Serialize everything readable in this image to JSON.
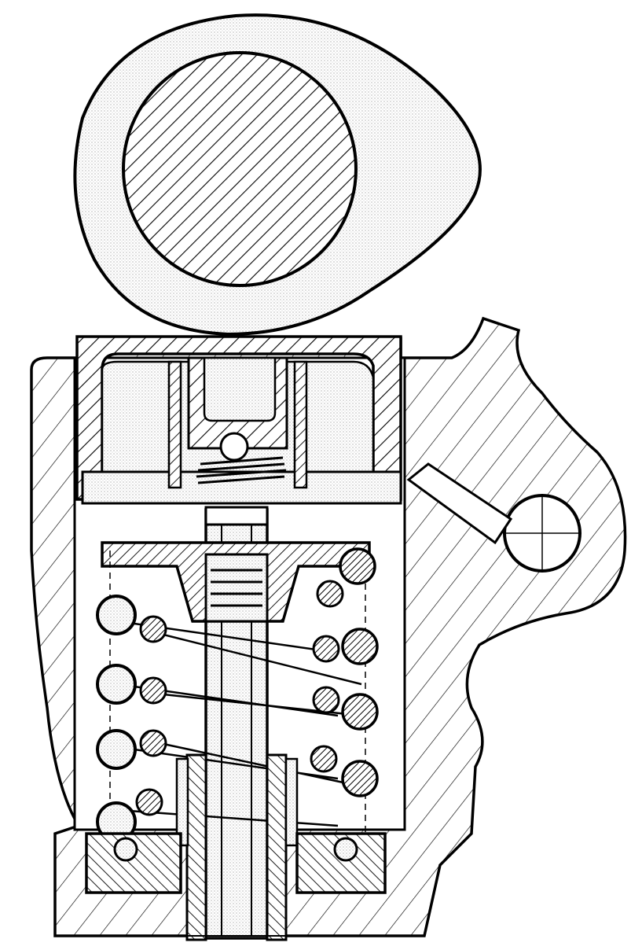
{
  "drawing": {
    "subject": "cam-follower-valve-train-section",
    "colors": {
      "ink": "#000000",
      "paper": "#ffffff",
      "stipple": "#d9d9d9"
    }
  }
}
